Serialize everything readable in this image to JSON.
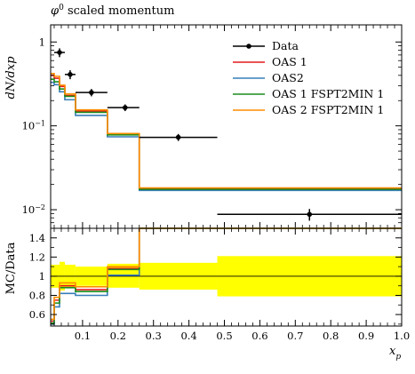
{
  "chart_data": [
    {
      "type": "line",
      "panel": "main",
      "title": "φ0 scaled momentum",
      "ylabel": "dN/dxp",
      "xlim": [
        0.01,
        1.0
      ],
      "ylim": [
        0.006,
        1.6
      ],
      "yscale": "log",
      "yticks": [
        {
          "value": 0.01,
          "base": "10",
          "exp": "−2"
        },
        {
          "value": 0.1,
          "base": "10",
          "exp": "−1"
        },
        {
          "value": 1,
          "base": "1",
          "exp": ""
        }
      ],
      "legend": {
        "position": "top-right"
      },
      "data_series": {
        "name": "Data",
        "color": "#000000",
        "points": [
          {
            "x": 0.035,
            "xlo": 0.02,
            "xhi": 0.05,
            "y": 0.75,
            "ylo": 0.66,
            "yhi": 0.84
          },
          {
            "x": 0.065,
            "xlo": 0.05,
            "xhi": 0.08,
            "y": 0.41,
            "ylo": 0.36,
            "yhi": 0.46
          },
          {
            "x": 0.125,
            "xlo": 0.08,
            "xhi": 0.17,
            "y": 0.25,
            "ylo": 0.225,
            "yhi": 0.275
          },
          {
            "x": 0.22,
            "xlo": 0.17,
            "xhi": 0.26,
            "y": 0.165,
            "ylo": 0.15,
            "yhi": 0.18
          },
          {
            "x": 0.37,
            "xlo": 0.26,
            "xhi": 0.48,
            "y": 0.073,
            "ylo": 0.066,
            "yhi": 0.08
          },
          {
            "x": 0.74,
            "xlo": 0.48,
            "xhi": 1.0,
            "y": 0.0088,
            "ylo": 0.0074,
            "yhi": 0.0102
          }
        ]
      },
      "bin_edges": [
        0.01,
        0.02,
        0.035,
        0.05,
        0.08,
        0.17,
        0.26,
        0.48,
        1.0
      ],
      "series": [
        {
          "name": "OAS 1",
          "color": "#e41a1c",
          "values": [
            0.4,
            0.37,
            0.295,
            0.23,
            0.15,
            0.079,
            0.018,
            0.018
          ]
        },
        {
          "name": "OAS2",
          "color": "#377eb8",
          "values": [
            0.33,
            0.31,
            0.255,
            0.205,
            0.133,
            0.074,
            0.017,
            0.017
          ]
        },
        {
          "name": "OAS 1 FSPT2MIN 1",
          "color": "#1a8c1a",
          "values": [
            0.36,
            0.335,
            0.275,
            0.225,
            0.145,
            0.078,
            0.0175,
            0.0175
          ]
        },
        {
          "name": "OAS 2 FSPT2MIN 1",
          "color": "#ff8c00",
          "values": [
            0.42,
            0.39,
            0.305,
            0.24,
            0.155,
            0.081,
            0.0182,
            0.0182
          ]
        }
      ]
    },
    {
      "type": "line",
      "panel": "ratio",
      "ylabel": "MC/Data",
      "xlabel": "xp",
      "xlim": [
        0.01,
        1.0
      ],
      "ylim": [
        0.48,
        1.5
      ],
      "yticks": [
        0.6,
        0.8,
        1,
        1.2,
        1.4
      ],
      "ytick_labels": [
        "0.6",
        "0.8",
        "1",
        "1.2",
        "1.4"
      ],
      "xticks": [
        0.1,
        0.2,
        0.3,
        0.4,
        0.5,
        0.6,
        0.7,
        0.8,
        0.9,
        1.0
      ],
      "xtick_labels": [
        "0.1",
        "0.2",
        "0.3",
        "0.4",
        "0.5",
        "0.6",
        "0.7",
        "0.8",
        "0.9",
        "1.0"
      ],
      "band_color": "#ffff00",
      "band": [
        {
          "x0": 0.01,
          "x1": 0.035,
          "lo": 0.88,
          "hi": 1.12
        },
        {
          "x0": 0.035,
          "x1": 0.05,
          "lo": 0.85,
          "hi": 1.15
        },
        {
          "x0": 0.05,
          "x1": 0.08,
          "lo": 0.88,
          "hi": 1.12
        },
        {
          "x0": 0.08,
          "x1": 0.17,
          "lo": 0.9,
          "hi": 1.1
        },
        {
          "x0": 0.17,
          "x1": 0.26,
          "lo": 0.88,
          "hi": 1.13
        },
        {
          "x0": 0.26,
          "x1": 0.48,
          "lo": 0.86,
          "hi": 1.14
        },
        {
          "x0": 0.48,
          "x1": 1.0,
          "lo": 0.79,
          "hi": 1.21
        }
      ],
      "series": [
        {
          "name": "OAS 1",
          "color": "#e41a1c",
          "values": [
            0.53,
            0.75,
            0.9,
            0.9,
            0.86,
            1.08,
            1.5,
            1.5
          ]
        },
        {
          "name": "OAS2",
          "color": "#377eb8",
          "values": [
            0.5,
            0.68,
            0.82,
            0.82,
            0.8,
            1.01,
            1.5,
            1.5
          ]
        },
        {
          "name": "OAS 1 FSPT2MIN 1",
          "color": "#1a8c1a",
          "values": [
            0.51,
            0.72,
            0.88,
            0.88,
            0.84,
            1.07,
            1.5,
            1.5
          ]
        },
        {
          "name": "OAS 2 FSPT2MIN 1",
          "color": "#ff8c00",
          "values": [
            0.55,
            0.78,
            0.93,
            0.93,
            0.89,
            1.1,
            1.5,
            1.5
          ]
        }
      ]
    }
  ]
}
